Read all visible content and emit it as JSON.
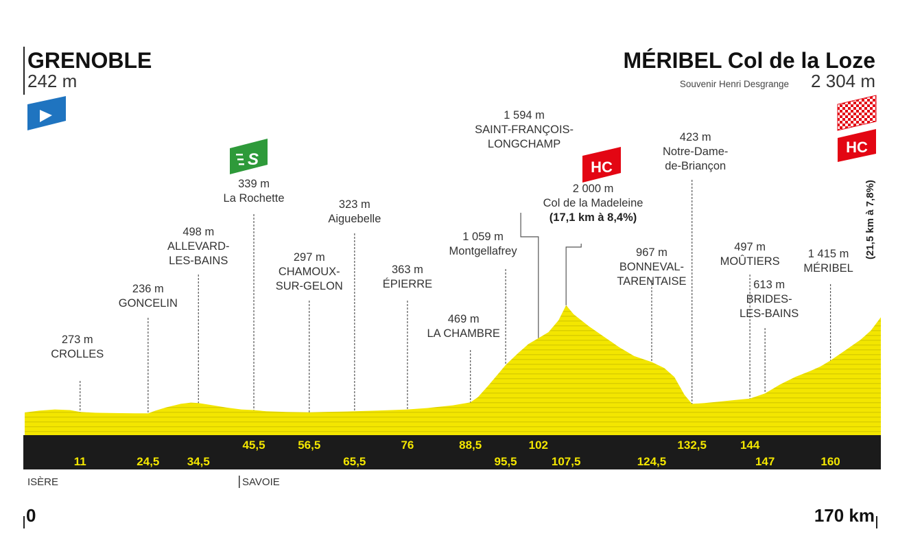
{
  "chart_data": {
    "type": "area",
    "start": {
      "name": "GRENOBLE",
      "altitude": "242 m"
    },
    "finish": {
      "name": "MÉRIBEL Col de la Loze",
      "subtitle": "Souvenir Henri Desgrange",
      "altitude": "2 304 m"
    },
    "x_start_label": "0",
    "x_end_label": "170 km",
    "xlim": [
      0,
      170
    ],
    "profile": [
      [
        0,
        242
      ],
      [
        3,
        255
      ],
      [
        6,
        262
      ],
      [
        9,
        258
      ],
      [
        11,
        245
      ],
      [
        14,
        240
      ],
      [
        18,
        238
      ],
      [
        22,
        236
      ],
      [
        24.5,
        236
      ],
      [
        26,
        255
      ],
      [
        28,
        275
      ],
      [
        31,
        300
      ],
      [
        33,
        308
      ],
      [
        34.5,
        305
      ],
      [
        37,
        292
      ],
      [
        40,
        275
      ],
      [
        43,
        262
      ],
      [
        45.5,
        258
      ],
      [
        48,
        250
      ],
      [
        52,
        245
      ],
      [
        56.5,
        243
      ],
      [
        60,
        246
      ],
      [
        63,
        248
      ],
      [
        65.5,
        250
      ],
      [
        70,
        255
      ],
      [
        76,
        262
      ],
      [
        80,
        272
      ],
      [
        85,
        290
      ],
      [
        88.5,
        310
      ],
      [
        90,
        345
      ],
      [
        92,
        420
      ],
      [
        94,
        500
      ],
      [
        95.5,
        560
      ],
      [
        98,
        640
      ],
      [
        100,
        700
      ],
      [
        102,
        740
      ],
      [
        104,
        780
      ],
      [
        106,
        860
      ],
      [
        107.5,
        960
      ],
      [
        109,
        900
      ],
      [
        112,
        820
      ],
      [
        115,
        750
      ],
      [
        118,
        680
      ],
      [
        121,
        620
      ],
      [
        124.5,
        580
      ],
      [
        127,
        540
      ],
      [
        129,
        480
      ],
      [
        131,
        360
      ],
      [
        132.5,
        300
      ],
      [
        135,
        305
      ],
      [
        138,
        315
      ],
      [
        141,
        325
      ],
      [
        144,
        335
      ],
      [
        147,
        370
      ],
      [
        150,
        430
      ],
      [
        153,
        480
      ],
      [
        156,
        520
      ],
      [
        158,
        550
      ],
      [
        160,
        590
      ],
      [
        163,
        660
      ],
      [
        166,
        730
      ],
      [
        168,
        790
      ],
      [
        170,
        880
      ]
    ],
    "km_markers_top": [
      "45,5",
      "56,5",
      "76",
      "88,5",
      "102",
      "132,5",
      "144"
    ],
    "km_markers_bottom": [
      "11",
      "24,5",
      "34,5",
      "65,5",
      "95,5",
      "107,5",
      "124,5",
      "147",
      "160"
    ],
    "km_marker_values_top": [
      45.5,
      56.5,
      76,
      88.5,
      102,
      132.5,
      144
    ],
    "km_marker_values_bottom": [
      11,
      24.5,
      34.5,
      65.5,
      95.5,
      107.5,
      124.5,
      147,
      160
    ],
    "places": [
      {
        "km": 11,
        "alt": "273 m",
        "name": [
          "CROLLES"
        ]
      },
      {
        "km": 24.5,
        "alt": "236 m",
        "name": [
          "GONCELIN"
        ]
      },
      {
        "km": 34.5,
        "alt": "498 m",
        "name": [
          "ALLEVARD-",
          "LES-BAINS"
        ]
      },
      {
        "km": 45.5,
        "alt": "339 m",
        "name": [
          "La Rochette"
        ]
      },
      {
        "km": 56.5,
        "alt": "297 m",
        "name": [
          "CHAMOUX-",
          "SUR-GELON"
        ]
      },
      {
        "km": 65.5,
        "alt": "323 m",
        "name": [
          "Aiguebelle"
        ]
      },
      {
        "km": 76,
        "alt": "363 m",
        "name": [
          "ÉPIERRE"
        ]
      },
      {
        "km": 88.5,
        "alt": "469 m",
        "name": [
          "LA CHAMBRE"
        ]
      },
      {
        "km": 95.5,
        "alt": "1 059 m",
        "name": [
          "Montgellafrey"
        ]
      },
      {
        "km": 102,
        "alt": "1 594 m",
        "name": [
          "SAINT-FRANÇOIS-",
          "LONGCHAMP"
        ]
      },
      {
        "km": 107.5,
        "alt": "2 000 m",
        "name": [
          "Col de la Madeleine",
          "(17,1 km à 8,4%)"
        ]
      },
      {
        "km": 124.5,
        "alt": "967 m",
        "name": [
          "BONNEVAL-",
          "TARENTAISE"
        ]
      },
      {
        "km": 132.5,
        "alt": "423 m",
        "name": [
          "Notre-Dame-",
          "de-Briançon"
        ]
      },
      {
        "km": 144,
        "alt": "497 m",
        "name": [
          "MOÛTIERS"
        ]
      },
      {
        "km": 147,
        "alt": "613 m",
        "name": [
          "BRIDES-",
          "LES-BAINS"
        ]
      },
      {
        "km": 160,
        "alt": "1 415 m",
        "name": [
          "MÉRIBEL"
        ]
      }
    ],
    "climb_note": "(21,5 km à 7,8%)",
    "categories": {
      "sprint": "S",
      "madeleine": "HC",
      "finish": "HC"
    },
    "regions": [
      "ISÈRE",
      "SAVOIE"
    ]
  },
  "colors": {
    "profile_fill": "#f3e600",
    "profile_stripe": "#d9cd00",
    "band": "#1b1b1b",
    "km_text": "#f3e600",
    "start_flag": "#1f74c0",
    "sprint_flag": "#2e9a3a",
    "hc_flag": "#e30613",
    "finish_check": "#e30613"
  },
  "icons": [
    "start-flag-icon",
    "sprint-flag-icon",
    "hc-flag-icon",
    "finish-checkered-flag-icon"
  ]
}
